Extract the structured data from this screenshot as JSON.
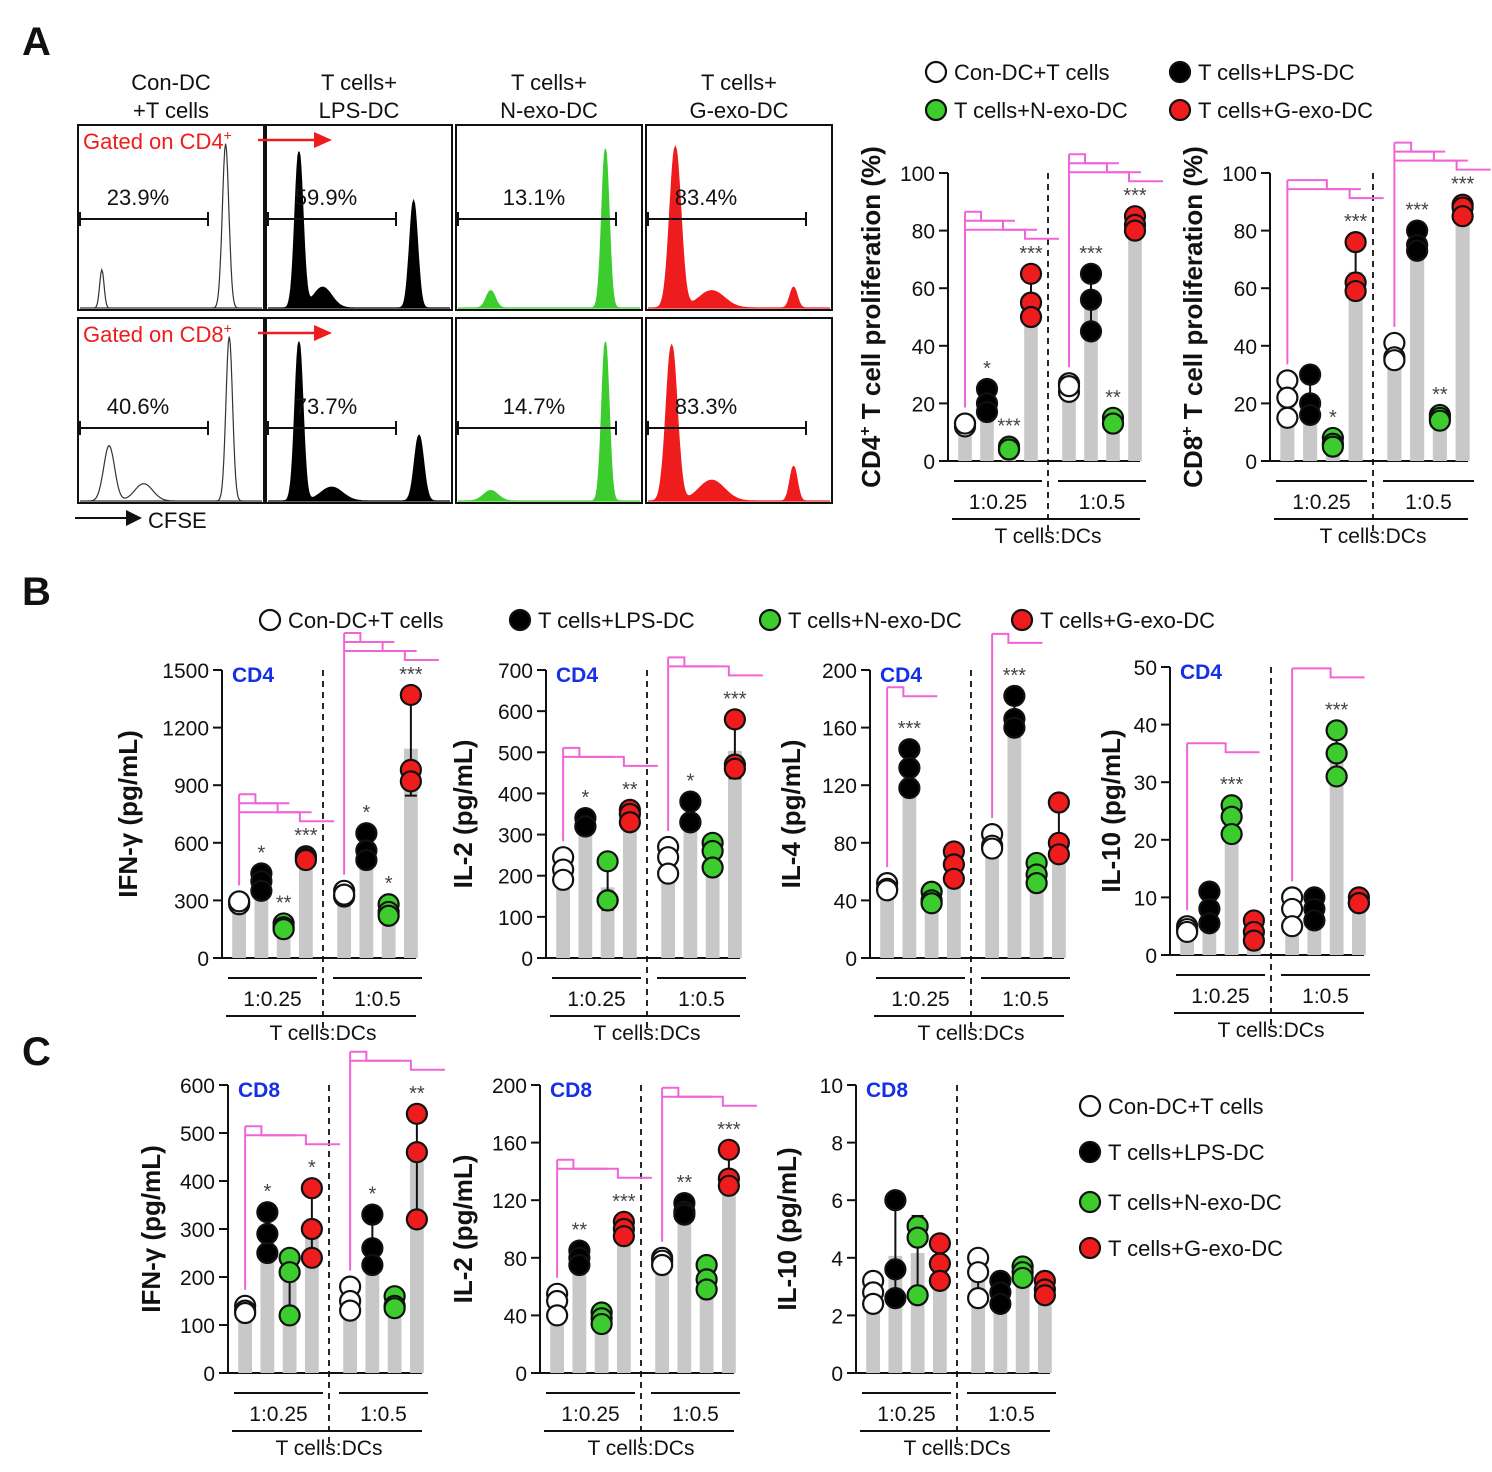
{
  "panel_letters": [
    "A",
    "B",
    "C"
  ],
  "colors": {
    "con": "#ffffff",
    "lps": "#000000",
    "nexo": "#3ccc2e",
    "gexo": "#ee1c1c",
    "bar": "#c8c8c8",
    "bracket": "#f064d8",
    "cd_label": "#1530e6",
    "gate": "#ee1c1c"
  },
  "legend_groups": [
    {
      "key": "con",
      "label": "Con-DC+T cells"
    },
    {
      "key": "lps",
      "label": "T cells+LPS-DC"
    },
    {
      "key": "nexo",
      "label": "T cells+N-exo-DC"
    },
    {
      "key": "gexo",
      "label": "T cells+G-exo-DC"
    }
  ],
  "flow": {
    "columns": [
      {
        "line1": "Con-DC",
        "line2": "+T cells",
        "color": "con"
      },
      {
        "line1": "T cells+",
        "line2": "LPS-DC",
        "color": "lps"
      },
      {
        "line1": "T cells+",
        "line2": "N-exo-DC",
        "color": "nexo"
      },
      {
        "line1": "T cells+",
        "line2": "G-exo-DC",
        "color": "gexo"
      }
    ],
    "rows": [
      {
        "gate": "Gated on CD4",
        "sup": "+",
        "percents": [
          "23.9%",
          "59.9%",
          "13.1%",
          "83.4%"
        ]
      },
      {
        "gate": "Gated on CD8",
        "sup": "+",
        "percents": [
          "40.6%",
          "73.7%",
          "14.7%",
          "83.3%"
        ]
      }
    ],
    "axis_label": "CFSE"
  },
  "chart_data": [
    {
      "id": "A1",
      "type": "bar",
      "cd": "",
      "ylabel_main": "CD4",
      "ylabel_sup": "+",
      "ylabel_rest": " T cell proliferation (%)",
      "yticks": [
        0,
        20,
        40,
        60,
        80,
        100
      ],
      "ylim": [
        0,
        100
      ],
      "xgroups": [
        "1:0.25",
        "1:0.5"
      ],
      "xlabel": "T cells:DCs",
      "series": [
        {
          "key": "con",
          "values": [
            [
              13,
              12,
              13
            ],
            [
              27,
              24,
              26
            ]
          ]
        },
        {
          "key": "lps",
          "values": [
            [
              25,
              20,
              17
            ],
            [
              65,
              56,
              45
            ]
          ]
        },
        {
          "key": "nexo",
          "values": [
            [
              5,
              4,
              4
            ],
            [
              15,
              13,
              13
            ]
          ]
        },
        {
          "key": "gexo",
          "values": [
            [
              65,
              55,
              50
            ],
            [
              85,
              82,
              80
            ]
          ]
        }
      ],
      "stars": [
        [
          "",
          "*",
          "***",
          "***"
        ],
        [
          "",
          "***",
          "**",
          "***"
        ]
      ]
    },
    {
      "id": "A2",
      "type": "bar",
      "cd": "",
      "ylabel_main": "CD8",
      "ylabel_sup": "+",
      "ylabel_rest": " T cell proliferation (%)",
      "yticks": [
        0,
        20,
        40,
        60,
        80,
        100
      ],
      "ylim": [
        0,
        100
      ],
      "xgroups": [
        "1:0.25",
        "1:0.5"
      ],
      "xlabel": "T cells:DCs",
      "series": [
        {
          "key": "con",
          "values": [
            [
              28,
              22,
              15
            ],
            [
              41,
              36,
              35
            ]
          ]
        },
        {
          "key": "lps",
          "values": [
            [
              30,
              20,
              16
            ],
            [
              80,
              75,
              73
            ]
          ]
        },
        {
          "key": "nexo",
          "values": [
            [
              8,
              6,
              5
            ],
            [
              16,
              15,
              14
            ]
          ]
        },
        {
          "key": "gexo",
          "values": [
            [
              76,
              62,
              59
            ],
            [
              89,
              88,
              85
            ]
          ]
        }
      ],
      "stars": [
        [
          "",
          "",
          "*",
          "***"
        ],
        [
          "",
          "***",
          "**",
          "***"
        ]
      ]
    },
    {
      "id": "B1",
      "type": "bar",
      "cd": "CD4",
      "ylabel": "IFN-γ (pg/mL)",
      "yticks": [
        0,
        300,
        600,
        900,
        1200,
        1500
      ],
      "ylim": [
        0,
        1500
      ],
      "xgroups": [
        "1:0.25",
        "1:0.5"
      ],
      "xlabel": "T cells:DCs",
      "series": [
        {
          "key": "con",
          "values": [
            [
              290,
              280,
              295
            ],
            [
              350,
              320,
              330
            ]
          ]
        },
        {
          "key": "lps",
          "values": [
            [
              440,
              400,
              350
            ],
            [
              650,
              560,
              510
            ]
          ]
        },
        {
          "key": "nexo",
          "values": [
            [
              180,
              160,
              150
            ],
            [
              280,
              240,
              220
            ]
          ]
        },
        {
          "key": "gexo",
          "values": [
            [
              530,
              520,
              510
            ],
            [
              1370,
              980,
              920
            ]
          ]
        }
      ],
      "stars": [
        [
          "",
          "*",
          "**",
          "***"
        ],
        [
          "",
          "*",
          "*",
          "***"
        ]
      ]
    },
    {
      "id": "B2",
      "type": "bar",
      "cd": "CD4",
      "ylabel": "IL-2 (pg/mL)",
      "yticks": [
        0,
        100,
        200,
        300,
        400,
        500,
        600,
        700
      ],
      "ylim": [
        0,
        700
      ],
      "xgroups": [
        "1:0.25",
        "1:0.5"
      ],
      "xlabel": "T cells:DCs",
      "series": [
        {
          "key": "con",
          "values": [
            [
              245,
              215,
              190
            ],
            [
              270,
              245,
              205
            ]
          ]
        },
        {
          "key": "lps",
          "values": [
            [
              340,
              320,
              320
            ],
            [
              380,
              330,
              330
            ]
          ]
        },
        {
          "key": "nexo",
          "values": [
            [
              235,
              140,
              140
            ],
            [
              280,
              260,
              220
            ]
          ]
        },
        {
          "key": "gexo",
          "values": [
            [
              360,
              350,
              330
            ],
            [
              580,
              470,
              460
            ]
          ]
        }
      ],
      "stars": [
        [
          "",
          "*",
          "",
          "**"
        ],
        [
          "",
          "*",
          "",
          "***"
        ]
      ]
    },
    {
      "id": "B3",
      "type": "bar",
      "cd": "CD4",
      "ylabel": "IL-4 (pg/mL)",
      "yticks": [
        0,
        40,
        80,
        120,
        160,
        200
      ],
      "ylim": [
        0,
        200
      ],
      "xgroups": [
        "1:0.25",
        "1:0.5"
      ],
      "xlabel": "T cells:DCs",
      "series": [
        {
          "key": "con",
          "values": [
            [
              52,
              48,
              47
            ],
            [
              86,
              78,
              76
            ]
          ]
        },
        {
          "key": "lps",
          "values": [
            [
              145,
              132,
              118
            ],
            [
              182,
              166,
              160
            ]
          ]
        },
        {
          "key": "nexo",
          "values": [
            [
              46,
              40,
              38
            ],
            [
              66,
              58,
              52
            ]
          ]
        },
        {
          "key": "gexo",
          "values": [
            [
              74,
              65,
              55
            ],
            [
              108,
              80,
              72
            ]
          ]
        }
      ],
      "stars": [
        [
          "",
          "***",
          "",
          ""
        ],
        [
          "",
          "***",
          "",
          ""
        ]
      ]
    },
    {
      "id": "B4",
      "type": "bar",
      "cd": "CD4",
      "ylabel": "IL-10 (pg/mL)",
      "yticks": [
        0,
        10,
        20,
        30,
        40,
        50
      ],
      "ylim": [
        0,
        50
      ],
      "xgroups": [
        "1:0.25",
        "1:0.5"
      ],
      "xlabel": "T cells:DCs",
      "series": [
        {
          "key": "con",
          "values": [
            [
              5,
              4.5,
              4
            ],
            [
              10,
              8,
              5
            ]
          ]
        },
        {
          "key": "lps",
          "values": [
            [
              11,
              8,
              5.5
            ],
            [
              10,
              8,
              6
            ]
          ]
        },
        {
          "key": "nexo",
          "values": [
            [
              26,
              24,
              21
            ],
            [
              39,
              35,
              31
            ]
          ]
        },
        {
          "key": "gexo",
          "values": [
            [
              6,
              4,
              2.5
            ],
            [
              10,
              9,
              9
            ]
          ]
        }
      ],
      "stars": [
        [
          "",
          "",
          "***",
          ""
        ],
        [
          "",
          "",
          "***",
          ""
        ]
      ]
    },
    {
      "id": "C1",
      "type": "bar",
      "cd": "CD8",
      "ylabel": "IFN-γ (pg/mL)",
      "yticks": [
        0,
        100,
        200,
        300,
        400,
        500,
        600
      ],
      "ylim": [
        0,
        600
      ],
      "xgroups": [
        "1:0.25",
        "1:0.5"
      ],
      "xlabel": "T cells:DCs",
      "series": [
        {
          "key": "con",
          "values": [
            [
              140,
              130,
              125
            ],
            [
              180,
              150,
              130
            ]
          ]
        },
        {
          "key": "lps",
          "values": [
            [
              335,
              290,
              250
            ],
            [
              330,
              260,
              225
            ]
          ]
        },
        {
          "key": "nexo",
          "values": [
            [
              240,
              210,
              120
            ],
            [
              160,
              140,
              135
            ]
          ]
        },
        {
          "key": "gexo",
          "values": [
            [
              385,
              300,
              240
            ],
            [
              540,
              460,
              320
            ]
          ]
        }
      ],
      "stars": [
        [
          "",
          "*",
          "",
          "*"
        ],
        [
          "",
          "*",
          "",
          "**"
        ]
      ]
    },
    {
      "id": "C2",
      "type": "bar",
      "cd": "CD8",
      "ylabel": "IL-2 (pg/mL)",
      "yticks": [
        0,
        40,
        80,
        120,
        160,
        200
      ],
      "ylim": [
        0,
        200
      ],
      "xgroups": [
        "1:0.25",
        "1:0.5"
      ],
      "xlabel": "T cells:DCs",
      "series": [
        {
          "key": "con",
          "values": [
            [
              55,
              50,
              40
            ],
            [
              80,
              78,
              75
            ]
          ]
        },
        {
          "key": "lps",
          "values": [
            [
              85,
              80,
              75
            ],
            [
              118,
              112,
              110
            ]
          ]
        },
        {
          "key": "nexo",
          "values": [
            [
              42,
              38,
              34
            ],
            [
              75,
              65,
              58
            ]
          ]
        },
        {
          "key": "gexo",
          "values": [
            [
              105,
              100,
              95
            ],
            [
              155,
              135,
              130
            ]
          ]
        }
      ],
      "stars": [
        [
          "",
          "**",
          "",
          "***"
        ],
        [
          "",
          "**",
          "",
          "***"
        ]
      ]
    },
    {
      "id": "C3",
      "type": "bar",
      "cd": "CD8",
      "ylabel": "IL-10 (pg/mL)",
      "yticks": [
        0,
        2,
        4,
        6,
        8,
        10
      ],
      "ylim": [
        0,
        10
      ],
      "xgroups": [
        "1:0.25",
        "1:0.5"
      ],
      "xlabel": "T cells:DCs",
      "series": [
        {
          "key": "con",
          "values": [
            [
              3.2,
              2.8,
              2.4
            ],
            [
              4,
              3.5,
              2.6
            ]
          ]
        },
        {
          "key": "lps",
          "values": [
            [
              6,
              3.6,
              2.6
            ],
            [
              3.2,
              2.8,
              2.4
            ]
          ]
        },
        {
          "key": "nexo",
          "values": [
            [
              5.1,
              4.7,
              2.7
            ],
            [
              3.7,
              3.5,
              3.3
            ]
          ]
        },
        {
          "key": "gexo",
          "values": [
            [
              4.5,
              3.8,
              3.2
            ],
            [
              3.2,
              2.9,
              2.7
            ]
          ]
        }
      ],
      "stars": [
        [
          "",
          "",
          "",
          ""
        ],
        [
          "",
          "",
          "",
          ""
        ]
      ]
    }
  ]
}
